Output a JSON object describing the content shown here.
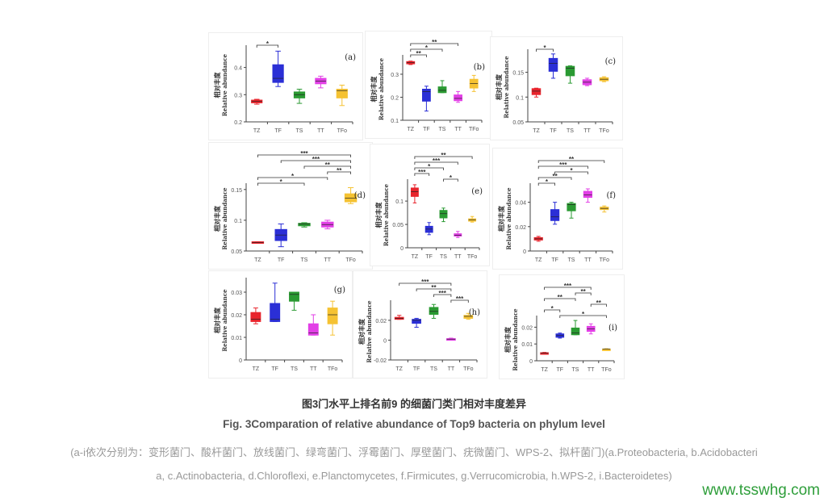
{
  "caption": {
    "title_zh": "图3门水平上排名前9 的细菌门类门相对丰度差异",
    "title_en": "Fig. 3Comparation of relative abundance of Top9 bacteria on phylum level",
    "note_line1": "(a-i依次分别为：变形菌门、酸杆菌门、放线菌门、绿弯菌门、浮霉菌门、厚壁菌门、疣微菌门、WPS-2、拟杆菌门)(a.Proteobacteria, b.Acidobacteri",
    "note_line2": "a, c.Actinobacteria, d.Chloroflexi, e.Planctomycetes, f.Firmicutes, g.Verrucomicrobia, h.WPS-2, i.Bacteroidetes)"
  },
  "watermark": "www.tsswhg.com",
  "chart_data": {
    "type": "box",
    "groups": [
      "TZ",
      "TF",
      "TS",
      "TT",
      "TFo"
    ],
    "colors": [
      "#e8242c",
      "#2b2fd6",
      "#2a9a32",
      "#e23fe6",
      "#f5c232"
    ],
    "ylabel_zh": "相对丰度",
    "ylabel_en": "Relative abundance",
    "panels": [
      {
        "label": "(a)",
        "ylim": [
          0.2,
          0.47
        ],
        "yticks": [
          "0.2",
          "0.3",
          "0.4"
        ],
        "boxes": [
          [
            0.265,
            0.27,
            0.275,
            0.28,
            0.283
          ],
          [
            0.33,
            0.345,
            0.36,
            0.41,
            0.46
          ],
          [
            0.268,
            0.288,
            0.3,
            0.31,
            0.32
          ],
          [
            0.325,
            0.34,
            0.35,
            0.36,
            0.368
          ],
          [
            0.26,
            0.288,
            0.315,
            0.32,
            0.335
          ]
        ],
        "sig": [
          {
            "from": "TZ",
            "to": "TF",
            "label": "*"
          }
        ]
      },
      {
        "label": "(b)",
        "ylim": [
          0.1,
          0.37
        ],
        "yticks": [
          "0.1",
          "0.2",
          "0.3"
        ],
        "boxes": [
          [
            0.342,
            0.345,
            0.35,
            0.355,
            0.357
          ],
          [
            0.14,
            0.183,
            0.225,
            0.235,
            0.248
          ],
          [
            0.22,
            0.22,
            0.23,
            0.245,
            0.272
          ],
          [
            0.178,
            0.185,
            0.195,
            0.21,
            0.225
          ],
          [
            0.225,
            0.24,
            0.26,
            0.278,
            0.295
          ]
        ],
        "sig": [
          {
            "from": "TZ",
            "to": "TF",
            "label": "**"
          },
          {
            "from": "TZ",
            "to": "TS",
            "label": "*"
          },
          {
            "from": "TZ",
            "to": "TT",
            "label": "**"
          }
        ]
      },
      {
        "label": "(c)",
        "ylim": [
          0.05,
          0.19
        ],
        "yticks": [
          "0.05",
          "0.1",
          "0.15"
        ],
        "boxes": [
          [
            0.1,
            0.105,
            0.112,
            0.117,
            0.118
          ],
          [
            0.138,
            0.152,
            0.168,
            0.178,
            0.187
          ],
          [
            0.128,
            0.143,
            0.158,
            0.162,
            0.163
          ],
          [
            0.123,
            0.125,
            0.13,
            0.135,
            0.138
          ],
          [
            0.131,
            0.133,
            0.136,
            0.139,
            0.141
          ]
        ],
        "sig": [
          {
            "from": "TZ",
            "to": "TF",
            "label": "*"
          }
        ]
      },
      {
        "label": "(d)",
        "ylim": [
          0.05,
          0.155
        ],
        "yticks": [
          "0.05",
          "0.1",
          "0.15"
        ],
        "boxes": [
          [
            0.063,
            0.063,
            0.064,
            0.065,
            0.065
          ],
          [
            0.057,
            0.067,
            0.076,
            0.085,
            0.094
          ],
          [
            0.089,
            0.091,
            0.094,
            0.095,
            0.096
          ],
          [
            0.086,
            0.089,
            0.093,
            0.097,
            0.1
          ],
          [
            0.127,
            0.13,
            0.136,
            0.143,
            0.153
          ]
        ],
        "sig": [
          {
            "from": "TZ",
            "to": "TS",
            "label": "*"
          },
          {
            "from": "TZ",
            "to": "TT",
            "label": "*"
          },
          {
            "from": "TT",
            "to": "TFo",
            "label": "**"
          },
          {
            "from": "TS",
            "to": "TFo",
            "label": "**"
          },
          {
            "from": "TF",
            "to": "TFo",
            "label": "***"
          },
          {
            "from": "TZ",
            "to": "TFo",
            "label": "***"
          }
        ]
      },
      {
        "label": "(e)",
        "ylim": [
          0,
          0.14
        ],
        "yticks": [
          "0",
          "0.05",
          "0.1"
        ],
        "boxes": [
          [
            0.096,
            0.11,
            0.12,
            0.128,
            0.135
          ],
          [
            0.028,
            0.033,
            0.04,
            0.046,
            0.054
          ],
          [
            0.056,
            0.064,
            0.073,
            0.08,
            0.085
          ],
          [
            0.022,
            0.025,
            0.027,
            0.03,
            0.035
          ],
          [
            0.055,
            0.057,
            0.06,
            0.062,
            0.067
          ]
        ],
        "sig": [
          {
            "from": "TS",
            "to": "TT",
            "label": "*"
          },
          {
            "from": "TZ",
            "to": "TF",
            "label": "***"
          },
          {
            "from": "TZ",
            "to": "TS",
            "label": "*"
          },
          {
            "from": "TZ",
            "to": "TT",
            "label": "***"
          },
          {
            "from": "TZ",
            "to": "TFo",
            "label": "**"
          }
        ]
      },
      {
        "label": "(f)",
        "ylim": [
          0,
          0.053
        ],
        "yticks": [
          "0",
          "0.02",
          "0.04"
        ],
        "boxes": [
          [
            0.008,
            0.009,
            0.01,
            0.011,
            0.012
          ],
          [
            0.022,
            0.025,
            0.028,
            0.034,
            0.04
          ],
          [
            0.027,
            0.033,
            0.038,
            0.039,
            0.04
          ],
          [
            0.04,
            0.044,
            0.046,
            0.049,
            0.051
          ],
          [
            0.032,
            0.034,
            0.035,
            0.036,
            0.037
          ]
        ],
        "sig": [
          {
            "from": "TZ",
            "to": "TF",
            "label": "*"
          },
          {
            "from": "TZ",
            "to": "TS",
            "label": "**"
          },
          {
            "from": "TF",
            "to": "TT",
            "label": "*"
          },
          {
            "from": "TZ",
            "to": "TT",
            "label": "***"
          },
          {
            "from": "TZ",
            "to": "TFo",
            "label": "**"
          }
        ]
      },
      {
        "label": "(g)",
        "ylim": [
          0,
          0.035
        ],
        "yticks": [
          "0",
          "0.01",
          "0.02",
          "0.03"
        ],
        "boxes": [
          [
            0.016,
            0.017,
            0.018,
            0.021,
            0.023
          ],
          [
            0.017,
            0.017,
            0.018,
            0.025,
            0.034
          ],
          [
            0.022,
            0.026,
            0.029,
            0.03,
            0.03
          ],
          [
            0.011,
            0.011,
            0.012,
            0.016,
            0.02
          ],
          [
            0.011,
            0.016,
            0.02,
            0.023,
            0.026
          ]
        ],
        "sig": []
      },
      {
        "label": "(h)",
        "ylim": [
          -0.02,
          0.037
        ],
        "yticks": [
          "-0.02",
          "0",
          "0.02"
        ],
        "boxes": [
          [
            0.021,
            0.021,
            0.022,
            0.023,
            0.025
          ],
          [
            0.013,
            0.017,
            0.02,
            0.021,
            0.022
          ],
          [
            0.022,
            0.026,
            0.029,
            0.033,
            0.036
          ],
          [
            0,
            0.0005,
            0.001,
            0.0015,
            0.002
          ],
          [
            0.021,
            0.022,
            0.024,
            0.025,
            0.027
          ]
        ],
        "sig": [
          {
            "from": "TT",
            "to": "TFo",
            "label": "***"
          },
          {
            "from": "TS",
            "to": "TT",
            "label": "***"
          },
          {
            "from": "TF",
            "to": "TT",
            "label": "**"
          },
          {
            "from": "TZ",
            "to": "TT",
            "label": "***"
          }
        ]
      },
      {
        "label": "(i)",
        "ylim": [
          0,
          0.025
        ],
        "yticks": [
          "0",
          "0.01",
          "0.02"
        ],
        "boxes": [
          [
            0.004,
            0.0042,
            0.0045,
            0.0048,
            0.005
          ],
          [
            0.0135,
            0.014,
            0.015,
            0.016,
            0.0165
          ],
          [
            0.0155,
            0.0155,
            0.0165,
            0.0195,
            0.024
          ],
          [
            0.016,
            0.0175,
            0.019,
            0.0205,
            0.022
          ],
          [
            0.0065,
            0.0065,
            0.007,
            0.007,
            0.0072
          ]
        ],
        "sig": [
          {
            "from": "TF",
            "to": "TFo",
            "label": "*"
          },
          {
            "from": "TZ",
            "to": "TF",
            "label": "*"
          },
          {
            "from": "TT",
            "to": "TFo",
            "label": "**"
          },
          {
            "from": "TZ",
            "to": "TS",
            "label": "**"
          },
          {
            "from": "TS",
            "to": "TT",
            "label": "**"
          },
          {
            "from": "TZ",
            "to": "TT",
            "label": "***"
          }
        ]
      }
    ]
  }
}
